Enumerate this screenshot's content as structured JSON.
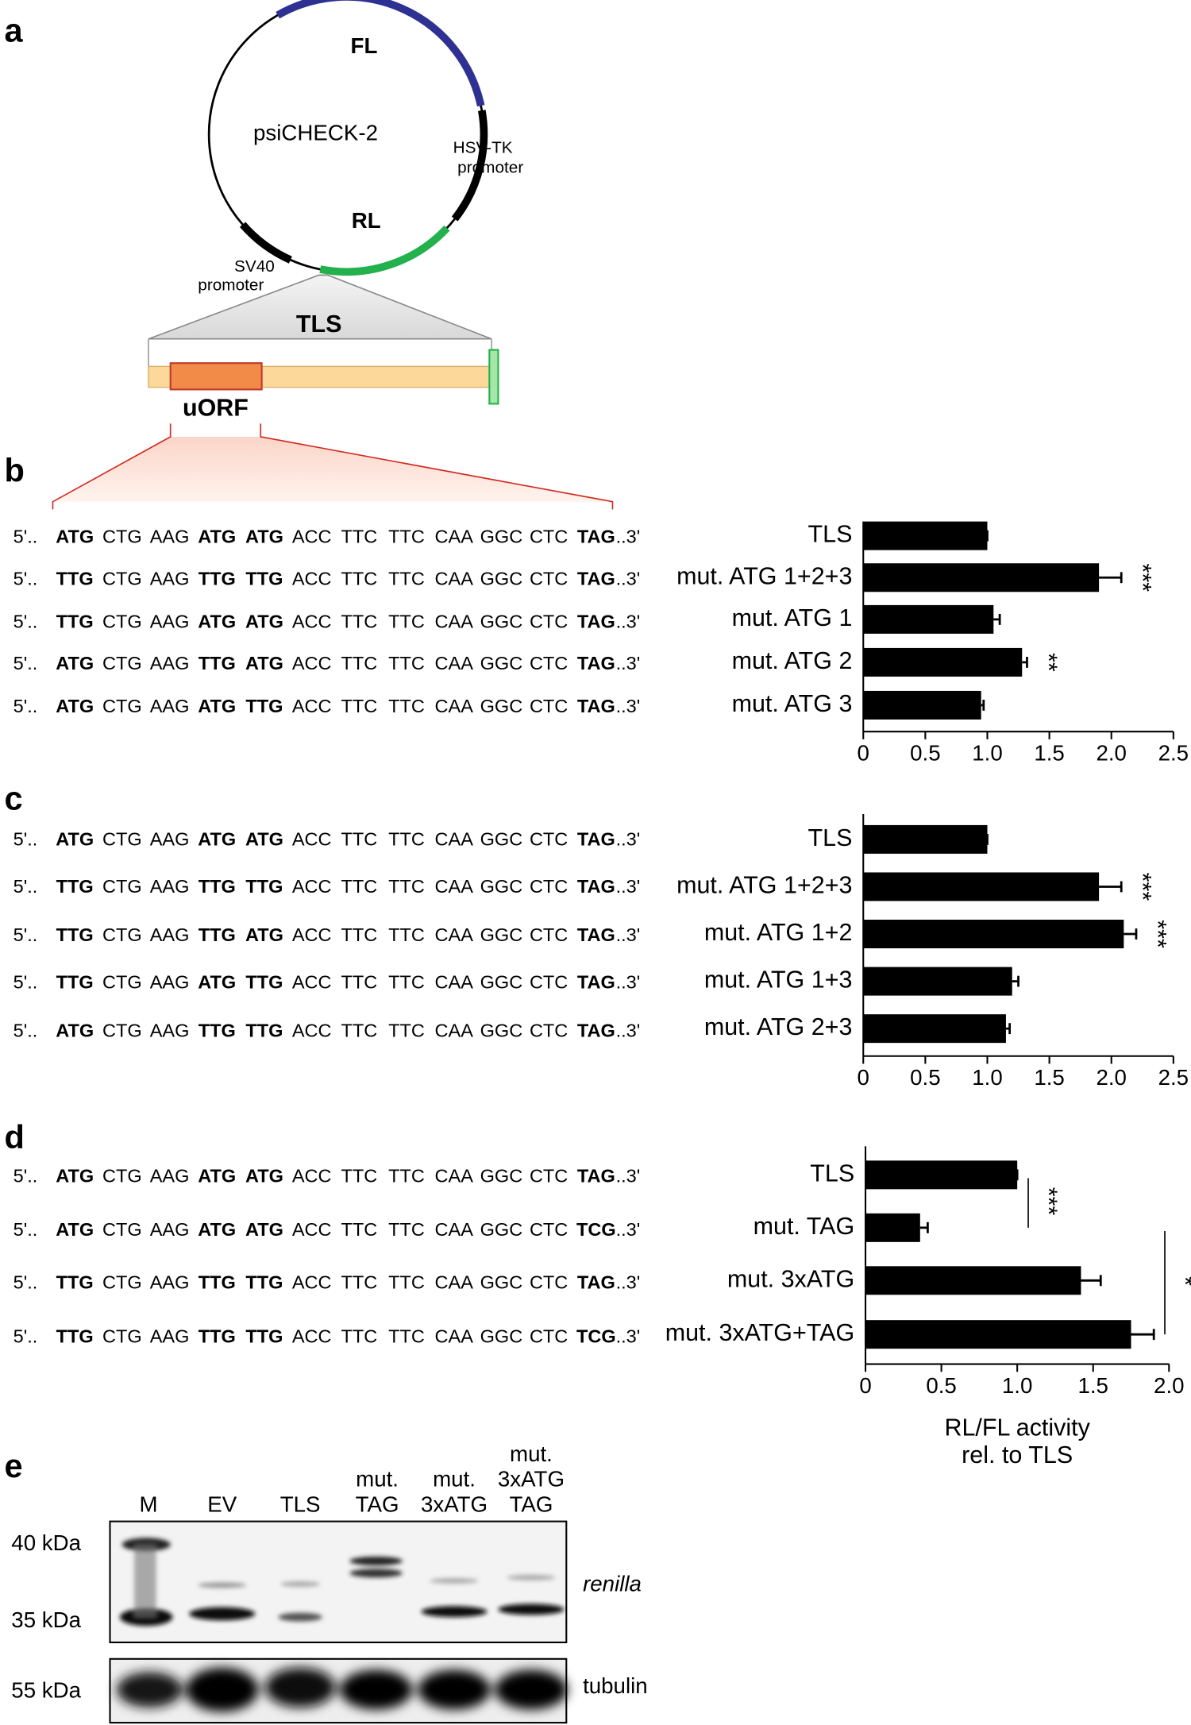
{
  "panel_labels": {
    "a": "a",
    "b": "b",
    "c": "c",
    "d": "d",
    "e": "e"
  },
  "plasmid": {
    "name": "psiCHECK-2",
    "fl": "FL",
    "fl_color": "#2e3192",
    "rl": "RL",
    "rl_color": "#22b14c",
    "hsv_tk": [
      "HSV-TK",
      "promoter"
    ],
    "sv40": [
      "SV40",
      "promoter"
    ],
    "tls": "TLS",
    "tls_color": "#f4c77c",
    "uorf": "uORF",
    "uorf_color": "#d42a20"
  },
  "sequences": {
    "prefix": "5'..",
    "suffix": "..3'",
    "color": "#555555",
    "codon_colors": {
      "ATG": "#2bb04a",
      "TTG": "#d42a20",
      "TAG": "#2e3192",
      "TCG": "#d42a20"
    },
    "b": [
      [
        "ATG",
        "CTG",
        "AAG",
        "ATG",
        "ATG",
        "ACC",
        "TTC",
        "TTC",
        "CAA",
        "GGC",
        "CTC",
        "TAG"
      ],
      [
        "TTG",
        "CTG",
        "AAG",
        "TTG",
        "TTG",
        "ACC",
        "TTC",
        "TTC",
        "CAA",
        "GGC",
        "CTC",
        "TAG"
      ],
      [
        "TTG",
        "CTG",
        "AAG",
        "ATG",
        "ATG",
        "ACC",
        "TTC",
        "TTC",
        "CAA",
        "GGC",
        "CTC",
        "TAG"
      ],
      [
        "ATG",
        "CTG",
        "AAG",
        "TTG",
        "ATG",
        "ACC",
        "TTC",
        "TTC",
        "CAA",
        "GGC",
        "CTC",
        "TAG"
      ],
      [
        "ATG",
        "CTG",
        "AAG",
        "ATG",
        "TTG",
        "ACC",
        "TTC",
        "TTC",
        "CAA",
        "GGC",
        "CTC",
        "TAG"
      ]
    ],
    "c": [
      [
        "ATG",
        "CTG",
        "AAG",
        "ATG",
        "ATG",
        "ACC",
        "TTC",
        "TTC",
        "CAA",
        "GGC",
        "CTC",
        "TAG"
      ],
      [
        "TTG",
        "CTG",
        "AAG",
        "TTG",
        "TTG",
        "ACC",
        "TTC",
        "TTC",
        "CAA",
        "GGC",
        "CTC",
        "TAG"
      ],
      [
        "TTG",
        "CTG",
        "AAG",
        "TTG",
        "ATG",
        "ACC",
        "TTC",
        "TTC",
        "CAA",
        "GGC",
        "CTC",
        "TAG"
      ],
      [
        "TTG",
        "CTG",
        "AAG",
        "ATG",
        "TTG",
        "ACC",
        "TTC",
        "TTC",
        "CAA",
        "GGC",
        "CTC",
        "TAG"
      ],
      [
        "ATG",
        "CTG",
        "AAG",
        "TTG",
        "TTG",
        "ACC",
        "TTC",
        "TTC",
        "CAA",
        "GGC",
        "CTC",
        "TAG"
      ]
    ],
    "d": [
      [
        "ATG",
        "CTG",
        "AAG",
        "ATG",
        "ATG",
        "ACC",
        "TTC",
        "TTC",
        "CAA",
        "GGC",
        "CTC",
        "TAG"
      ],
      [
        "ATG",
        "CTG",
        "AAG",
        "ATG",
        "ATG",
        "ACC",
        "TTC",
        "TTC",
        "CAA",
        "GGC",
        "CTC",
        "TCG"
      ],
      [
        "TTG",
        "CTG",
        "AAG",
        "TTG",
        "TTG",
        "ACC",
        "TTC",
        "TTC",
        "CAA",
        "GGC",
        "CTC",
        "TAG"
      ],
      [
        "TTG",
        "CTG",
        "AAG",
        "TTG",
        "TTG",
        "ACC",
        "TTC",
        "TTC",
        "CAA",
        "GGC",
        "CTC",
        "TCG"
      ]
    ]
  },
  "chart_data": [
    {
      "type": "bar",
      "orientation": "horizontal",
      "color": "#000000",
      "categories": [
        "TLS",
        "mut. ATG 1+2+3",
        "mut. ATG 1",
        "mut. ATG 2",
        "mut. ATG 3"
      ],
      "values": [
        1.0,
        1.9,
        1.05,
        1.28,
        0.95
      ],
      "errors": [
        0,
        0.18,
        0.05,
        0.04,
        0.02
      ],
      "significance": [
        null,
        "***",
        null,
        "**",
        null
      ],
      "xlim": [
        0,
        2.5
      ],
      "xticks": [
        0,
        0.5,
        {
          "value": 1,
          "label": "1.0"
        },
        1.5,
        {
          "value": 2,
          "label": "2.0"
        },
        2.5
      ]
    },
    {
      "type": "bar",
      "orientation": "horizontal",
      "color": "#000000",
      "categories": [
        "TLS",
        "mut. ATG 1+2+3",
        "mut. ATG 1+2",
        "mut. ATG 1+3",
        "mut. ATG 2+3"
      ],
      "values": [
        1.0,
        1.9,
        2.1,
        1.2,
        1.15
      ],
      "errors": [
        0,
        0.18,
        0.1,
        0.05,
        0.03
      ],
      "significance": [
        null,
        "***",
        "***",
        null,
        null
      ],
      "xlim": [
        0,
        2.5
      ],
      "xticks": [
        0,
        0.5,
        {
          "value": 1,
          "label": "1.0"
        },
        1.5,
        {
          "value": 2,
          "label": "2.0"
        },
        2.5
      ]
    },
    {
      "type": "bar",
      "orientation": "horizontal",
      "color": "#000000",
      "categories": [
        "TLS",
        "mut. TAG",
        "mut. 3xATG",
        "mut. 3xATG+TAG"
      ],
      "values": [
        1.0,
        0.36,
        1.42,
        1.75
      ],
      "errors": [
        0,
        0.05,
        0.13,
        0.15
      ],
      "comparisons": [
        {
          "between": [
            0,
            1
          ],
          "label": "***"
        },
        {
          "between": [
            1,
            3
          ],
          "label": "*"
        }
      ],
      "xlim": [
        0,
        2.0
      ],
      "xticks": [
        0,
        0.5,
        {
          "value": 1,
          "label": "1.0"
        },
        1.5,
        {
          "value": 2,
          "label": "2.0"
        }
      ],
      "xlabel": [
        "RL/FL activity",
        "rel. to TLS"
      ]
    }
  ],
  "blot": {
    "lanes": [
      [
        "M"
      ],
      [
        "EV"
      ],
      [
        "TLS"
      ],
      [
        "mut.",
        "TAG"
      ],
      [
        "mut.",
        "3xATG"
      ],
      [
        "mut.",
        "3xATG",
        "TAG"
      ]
    ],
    "markers": [
      "40 kDa",
      "35 kDa",
      "55 kDa"
    ],
    "targets": [
      "renilla",
      "tubulin"
    ]
  }
}
